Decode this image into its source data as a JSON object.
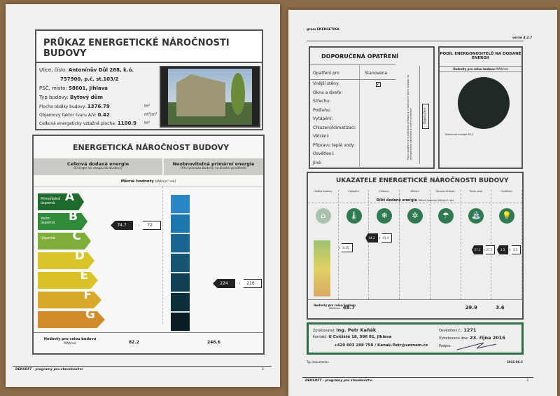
{
  "left_sheet": {
    "title": "PRŮKAZ ENERGETICKÉ NÁROČNOSTI BUDOVY",
    "info": [
      {
        "label": "Ulice, číslo:",
        "value": "Antonínův Důl 288, k.ú."
      },
      {
        "label": "",
        "value": "757900, p.č. st.103/2"
      },
      {
        "label": "PSČ, místo:",
        "value": "58601, Jihlava"
      },
      {
        "label": "Typ budovy:",
        "value": "Bytový dům"
      },
      {
        "label": "Plocha obálky budovy:",
        "value": "1376.79",
        "unit": "m²"
      },
      {
        "label": "Objemový faktor tvaru A/V:",
        "value": "0.42",
        "unit": "m²/m³"
      },
      {
        "label": "Celková energeticky vztažná plocha:",
        "value": "1100.9",
        "unit": "m²"
      }
    ],
    "energy": {
      "title": "ENERGETICKÁ NÁROČNOST BUDOVY",
      "col1_title": "Celková dodaná energie",
      "col1_sub": "(Energie na vstupu do budovy)",
      "col2_title": "Neobnovitelná primární energie",
      "col2_sub": "(Vliv provozu budovy na životní prostředí)",
      "specific_label": "Měrné hodnoty",
      "specific_unit": "kWh/(m² rok)",
      "classes": [
        {
          "letter": "A",
          "label": "Mimořádně úsporná",
          "color": "#1f6b2e"
        },
        {
          "letter": "B",
          "label": "Velmi úsporná",
          "color": "#2f8a3a"
        },
        {
          "letter": "C",
          "label": "Úsporná",
          "color": "#7fae3a"
        },
        {
          "letter": "D",
          "label": "",
          "color": "#d8c52a"
        },
        {
          "letter": "E",
          "label": "",
          "color": "#d9c22a"
        },
        {
          "letter": "F",
          "label": "",
          "color": "#d7a82a"
        },
        {
          "letter": "G",
          "label": "",
          "color": "#d28b2a"
        }
      ],
      "delivered_value": "74.7",
      "delivered_ref": "72",
      "primary_value": "224",
      "primary_ref": "216",
      "total_label": "Hodnoty pro celou budovu",
      "total_unit": "MWh/rok",
      "total_delivered": "82.2",
      "total_primary": "246.6"
    },
    "footer": "DEKSOFT - programy pro stavebnictví",
    "page": "2"
  },
  "right_sheet": {
    "program": "gram ENERGETIKA",
    "version": "verze 4.2.7",
    "measures": {
      "title": "DOPORUČENÁ OPATŘENÍ",
      "col1": "Opatření pro",
      "col2": "Stanovena",
      "items": [
        "Vnější stěny:",
        "Okna a dveře:",
        "Střechu:",
        "Podlahu:",
        "Vytápění:",
        "Chlazení/klimatizaci:",
        "Větrání:",
        "Přípravu teplé vody:",
        "Osvětlení:",
        "Jiné:"
      ],
      "checked": [
        true,
        false,
        false,
        false,
        false,
        false,
        false,
        false,
        false,
        false
      ],
      "side_note": "Popis opatření je v protokolu průkazu a v hodnocení jejich dopadu na energetickou náročnost a vnitřní prostředí",
      "side_button": "Doporučení"
    },
    "share": {
      "title": "PODÍL ENERGONOSITELŮ NA DODANÉ ENERGII",
      "subtitle": "Hodnoty pro celou budovu",
      "unit": "MWh/rok",
      "legend": "Elektrická energie 82.2"
    },
    "indicators": {
      "title": "UKAZATELE ENERGETICKÉ NÁROČNOSTI BUDOVY",
      "columns": [
        "Obálka budovy",
        "Vytápění",
        "Chlazení",
        "Větrání",
        "Úprava vlhkosti",
        "Teplá voda",
        "Osvětlení"
      ],
      "subheader": "Dílčí dodané energie",
      "sub_unit": "Měrné hodnoty kWh/(m² rok)",
      "envelope_value": "0.35",
      "heating": {
        "value": "44.2",
        "ref": "41.4"
      },
      "hot_water": {
        "value": "27.1",
        "ref": "27.1"
      },
      "lighting": {
        "value": "3.3",
        "ref": "3.3"
      },
      "total_label": "Hodnoty pro celou budovu",
      "total_unit": "MWh/rok",
      "totals": [
        "48.7",
        "",
        "",
        "",
        "29.9",
        "3.6"
      ]
    },
    "author": {
      "label": "Zpracovatel:",
      "name": "Ing. Petr Kaňák",
      "contact_label": "Kontakt:",
      "address": "U Cvičiště 18, 586 01, Jihlava",
      "phone_email": "+420 603 208 750 / Kanak.Petr@seznam.cz",
      "cert_label": "Osvědčení č.:",
      "cert": "1271",
      "date_label": "Vyhotoveno dne:",
      "date": "23. října 2016",
      "sign_label": "Podpis:"
    },
    "doc_type": "Typ dokumentu:",
    "doc_code": "2016-06-3",
    "footer": "DEKSOFT - programy pro stavebnictví",
    "page": "3"
  }
}
